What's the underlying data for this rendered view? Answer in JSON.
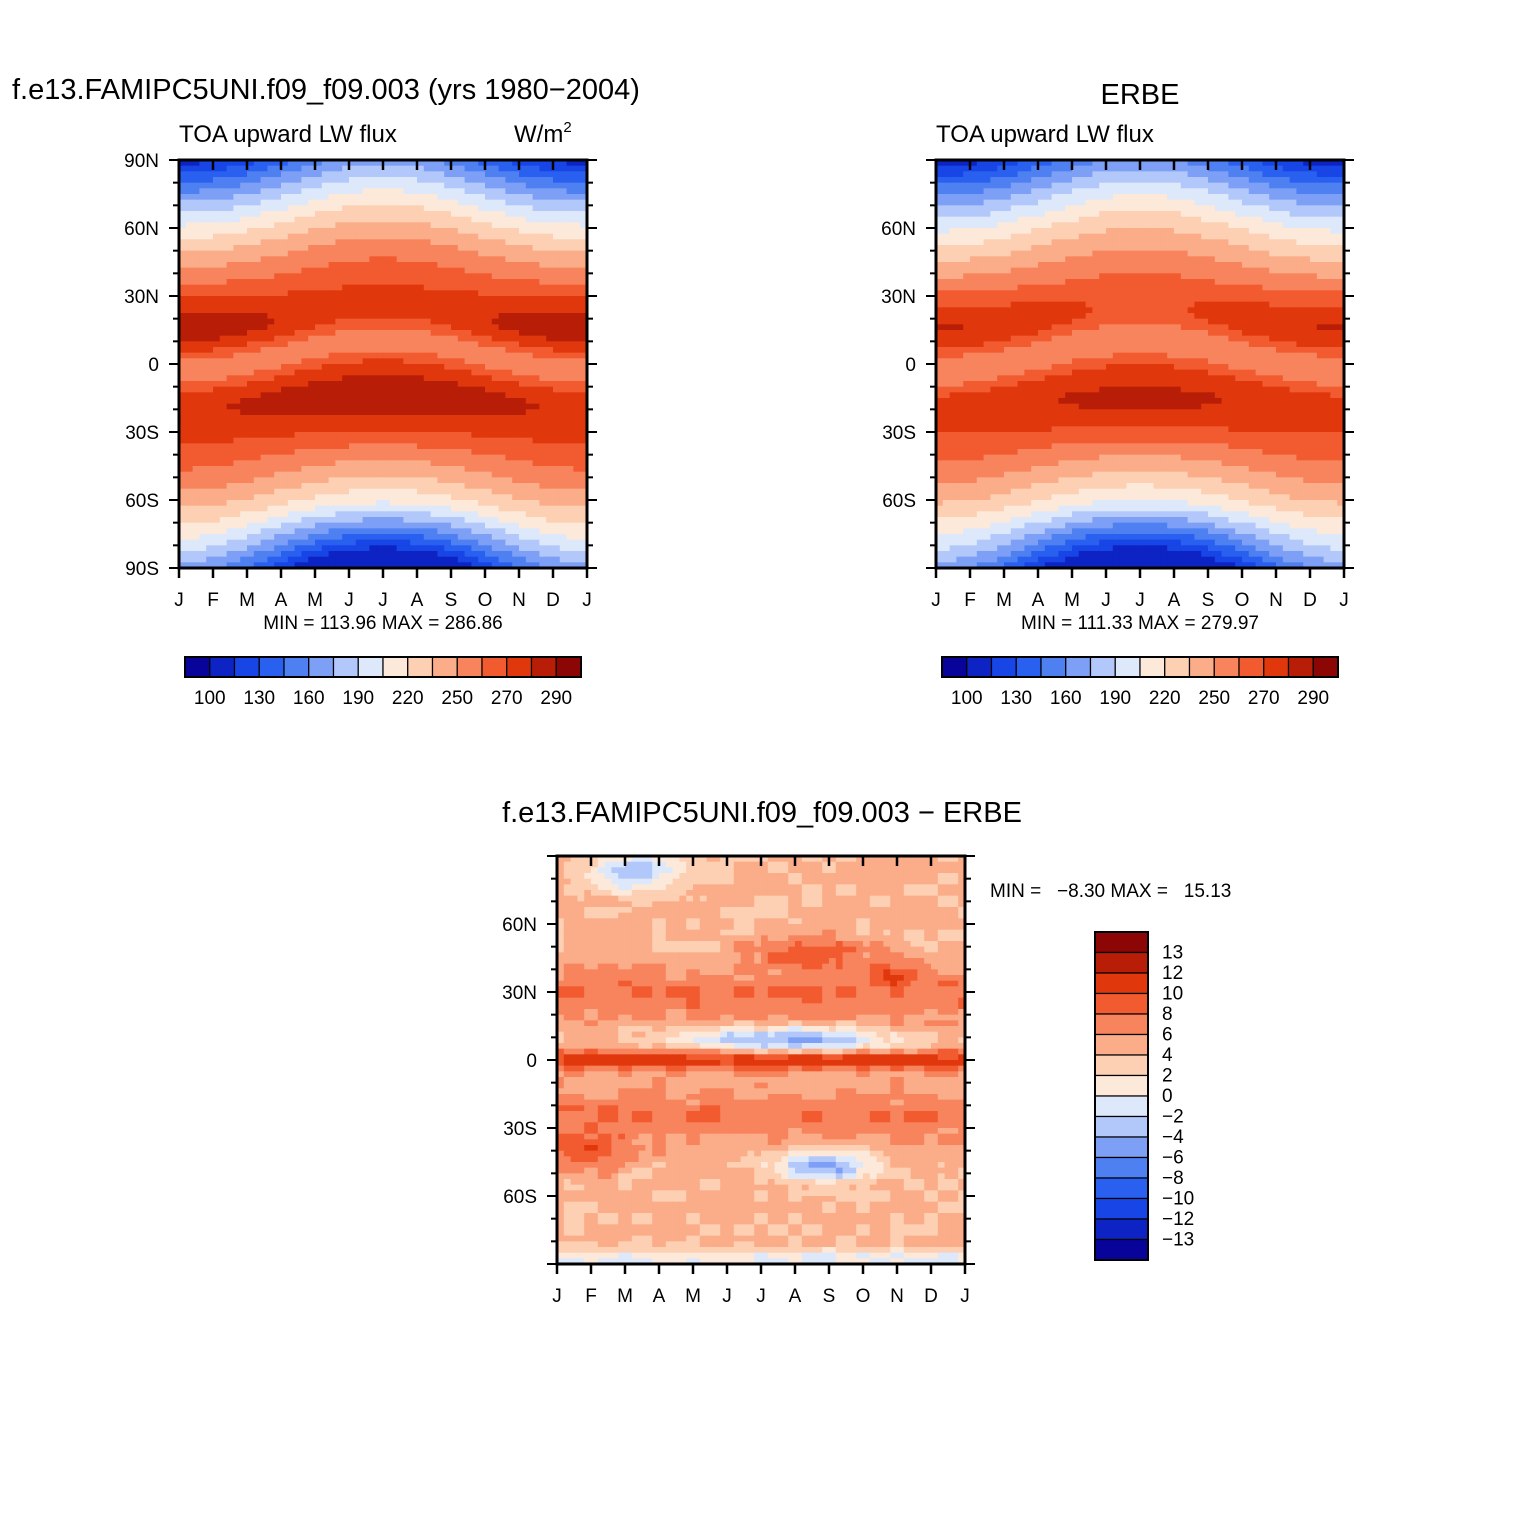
{
  "palette": [
    "#08049a",
    "#0d23c4",
    "#1845e6",
    "#2a60f0",
    "#4e80f2",
    "#7da0f6",
    "#b2c8fa",
    "#dde9fb",
    "#fde9da",
    "#fdcfb3",
    "#fbac88",
    "#f8845e",
    "#f25a30",
    "#e0380c",
    "#b81e07",
    "#8c0605"
  ],
  "top_left": {
    "title": "f.e13.FAMIPC5UNI.f09_f09.003 (yrs 1980−2004)",
    "subtitle_left": "TOA upward LW flux",
    "units": "W/m",
    "units_exp": "2",
    "minmax": "MIN = 113.96 MAX = 286.86"
  },
  "top_right": {
    "title": "ERBE",
    "subtitle_left": "TOA upward LW flux",
    "minmax": "MIN = 111.33 MAX = 279.97"
  },
  "bottom": {
    "title": "f.e13.FAMIPC5UNI.f09_f09.003 − ERBE",
    "minmax": "MIN =   −8.30 MAX =   15.13"
  },
  "chart_data": [
    {
      "type": "heatmap",
      "name": "model",
      "title": "f.e13.FAMIPC5UNI.f09_f09.003 (yrs 1980−2004)",
      "x": [
        "J",
        "F",
        "M",
        "A",
        "M",
        "J",
        "J",
        "A",
        "S",
        "O",
        "N",
        "D",
        "J"
      ],
      "y_ticks": [
        "90S",
        "60S",
        "30S",
        "0",
        "30N",
        "60N",
        "90N"
      ],
      "ylim": [
        -90,
        90
      ],
      "levels": [
        100,
        110,
        120,
        130,
        140,
        150,
        160,
        170,
        180,
        190,
        200,
        210,
        220,
        230,
        240,
        250,
        260,
        270,
        280,
        290,
        300
      ],
      "colorbar_labels": [
        "100",
        "130",
        "160",
        "190",
        "220",
        "250",
        "270",
        "290"
      ],
      "min": 113.96,
      "max": 286.86
    },
    {
      "type": "heatmap",
      "name": "obs",
      "title": "ERBE",
      "x": [
        "J",
        "F",
        "M",
        "A",
        "M",
        "J",
        "J",
        "A",
        "S",
        "O",
        "N",
        "D",
        "J"
      ],
      "y_ticks": [
        "60S",
        "30S",
        "0",
        "30N",
        "60N"
      ],
      "ylim": [
        -90,
        90
      ],
      "colorbar_labels": [
        "100",
        "130",
        "160",
        "190",
        "220",
        "250",
        "270",
        "290"
      ],
      "min": 111.33,
      "max": 279.97
    },
    {
      "type": "heatmap",
      "name": "diff",
      "title": "f.e13.FAMIPC5UNI.f09_f09.003 − ERBE",
      "x": [
        "J",
        "F",
        "M",
        "A",
        "M",
        "J",
        "J",
        "A",
        "S",
        "O",
        "N",
        "D",
        "J"
      ],
      "y_ticks": [
        "60S",
        "30S",
        "0",
        "30N",
        "60N"
      ],
      "ylim": [
        -90,
        90
      ],
      "levels": [
        -13,
        -12,
        -10,
        -8,
        -6,
        -4,
        -2,
        0,
        2,
        4,
        6,
        8,
        10,
        12,
        13
      ],
      "colorbar_labels": [
        "13",
        "12",
        "10",
        "8",
        "6",
        "4",
        "2",
        "0",
        "−2",
        "−4",
        "−6",
        "−8",
        "−10",
        "−12",
        "−13"
      ],
      "min": -8.3,
      "max": 15.13
    }
  ]
}
